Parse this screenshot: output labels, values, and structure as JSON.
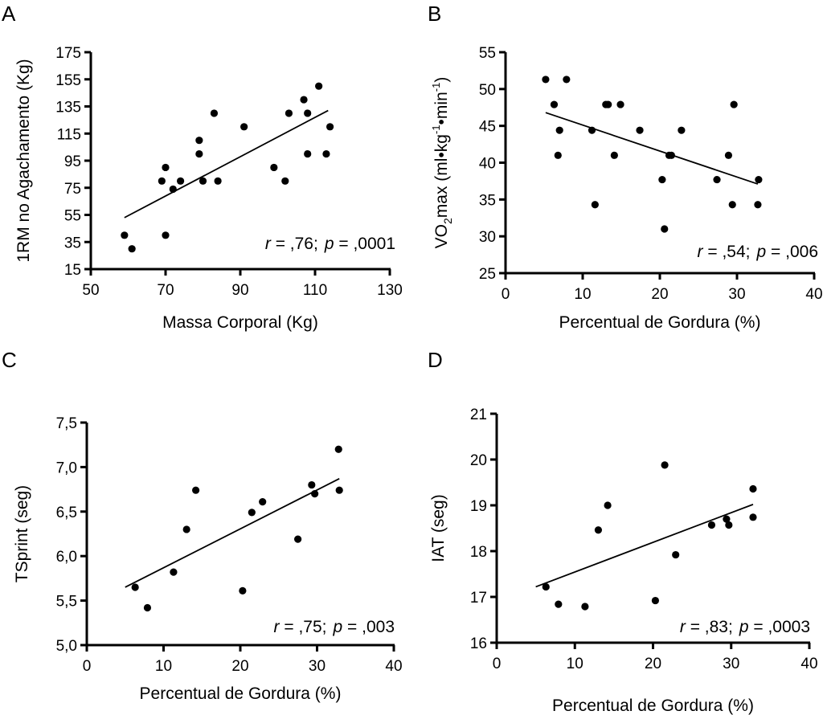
{
  "chart_data": [
    {
      "panel": "A",
      "type": "scatter",
      "title": "",
      "xlabel": "Massa Corporal (Kg)",
      "ylabel": "1RM no Agachamento (Kg)",
      "xlim": [
        50,
        130
      ],
      "ylim": [
        15,
        175
      ],
      "xticks": [
        50,
        70,
        90,
        110,
        130
      ],
      "yticks": [
        15,
        35,
        55,
        75,
        95,
        115,
        135,
        155,
        175
      ],
      "xtick_labels": [
        "50",
        "70",
        "90",
        "110",
        "130"
      ],
      "ytick_labels": [
        "15",
        "35",
        "55",
        "75",
        "95",
        "115",
        "135",
        "155",
        "175"
      ],
      "grid": false,
      "annotation": {
        "r_label": "r",
        "r_value": " = ,76;",
        "p_label": "p",
        "p_value": " = ,0001"
      },
      "points": [
        [
          59,
          40
        ],
        [
          61,
          30
        ],
        [
          69,
          80
        ],
        [
          70,
          90
        ],
        [
          70,
          40
        ],
        [
          72,
          74
        ],
        [
          74,
          80
        ],
        [
          79,
          100
        ],
        [
          79,
          110
        ],
        [
          80,
          80
        ],
        [
          83,
          130
        ],
        [
          84,
          80
        ],
        [
          91,
          120
        ],
        [
          99,
          90
        ],
        [
          102,
          80
        ],
        [
          103,
          130
        ],
        [
          107,
          140
        ],
        [
          108,
          130
        ],
        [
          108,
          100
        ],
        [
          111,
          150
        ],
        [
          113,
          100
        ],
        [
          114,
          120
        ]
      ],
      "trendline": [
        [
          59,
          53
        ],
        [
          113.5,
          132
        ]
      ]
    },
    {
      "panel": "B",
      "type": "scatter",
      "title": "",
      "xlabel": "Percentual de Gordura (%)",
      "ylabel_main": "VO",
      "ylabel_sub": "2",
      "ylabel_rest": "max (ml•kg",
      "ylabel_sup1": "-1",
      "ylabel_mid": "•min",
      "ylabel_sup2": "-1",
      "ylabel_end": ")",
      "xlim": [
        0,
        40
      ],
      "ylim": [
        25,
        55
      ],
      "xticks": [
        0,
        10,
        20,
        30,
        40
      ],
      "yticks": [
        25,
        30,
        35,
        40,
        45,
        50,
        55
      ],
      "xtick_labels": [
        "0",
        "10",
        "20",
        "30",
        "40"
      ],
      "ytick_labels": [
        "25",
        "30",
        "35",
        "40",
        "45",
        "50",
        "55"
      ],
      "grid": false,
      "annotation": {
        "r_label": "r",
        "r_value": " = ,54;",
        "p_label": "p",
        "p_value": " = ,006"
      },
      "points": [
        [
          5.2,
          51.3
        ],
        [
          6.3,
          47.9
        ],
        [
          7.9,
          51.3
        ],
        [
          7.0,
          44.4
        ],
        [
          6.8,
          41.0
        ],
        [
          11.2,
          44.4
        ],
        [
          11.6,
          34.3
        ],
        [
          13.0,
          47.9
        ],
        [
          13.3,
          47.9
        ],
        [
          14.1,
          41.0
        ],
        [
          14.9,
          47.9
        ],
        [
          17.4,
          44.4
        ],
        [
          20.3,
          37.7
        ],
        [
          20.6,
          31.0
        ],
        [
          21.2,
          41.0
        ],
        [
          21.5,
          41.0
        ],
        [
          22.8,
          44.4
        ],
        [
          27.4,
          37.7
        ],
        [
          28.9,
          41.0
        ],
        [
          29.4,
          34.3
        ],
        [
          29.6,
          47.9
        ],
        [
          32.8,
          37.7
        ],
        [
          32.7,
          34.3
        ]
      ],
      "trendline": [
        [
          5.2,
          46.8
        ],
        [
          32.7,
          37.1
        ]
      ]
    },
    {
      "panel": "C",
      "type": "scatter",
      "title": "",
      "xlabel": "Percentual de Gordura (%)",
      "ylabel": "TSprint (seg)",
      "xlim": [
        0,
        40
      ],
      "ylim": [
        5.0,
        7.5
      ],
      "xticks": [
        0,
        10,
        20,
        30,
        40
      ],
      "yticks": [
        5.0,
        5.5,
        6.0,
        6.5,
        7.0,
        7.5
      ],
      "xtick_labels": [
        "0",
        "10",
        "20",
        "30",
        "40"
      ],
      "ytick_labels": [
        "5,0",
        "5,5",
        "6,0",
        "6,5",
        "7,0",
        "7,5"
      ],
      "grid": false,
      "annotation": {
        "r_label": "r",
        "r_value": " = ,75;",
        "p_label": "p",
        "p_value": " = ,003"
      },
      "points": [
        [
          6.3,
          5.65
        ],
        [
          7.9,
          5.42
        ],
        [
          11.3,
          5.82
        ],
        [
          13.0,
          6.3
        ],
        [
          14.2,
          6.74
        ],
        [
          20.3,
          5.61
        ],
        [
          21.5,
          6.49
        ],
        [
          22.9,
          6.61
        ],
        [
          27.5,
          6.19
        ],
        [
          29.3,
          6.8
        ],
        [
          29.7,
          6.7
        ],
        [
          32.8,
          7.2
        ],
        [
          32.9,
          6.74
        ]
      ],
      "trendline": [
        [
          5.0,
          5.65
        ],
        [
          32.9,
          6.87
        ]
      ]
    },
    {
      "panel": "D",
      "type": "scatter",
      "title": "",
      "xlabel": "Percentual de Gordura (%)",
      "ylabel": "IAT (seg)",
      "xlim": [
        0,
        40
      ],
      "ylim": [
        16,
        21
      ],
      "xticks": [
        0,
        10,
        20,
        30,
        40
      ],
      "yticks": [
        16,
        17,
        18,
        19,
        20,
        21
      ],
      "xtick_labels": [
        "0",
        "10",
        "20",
        "30",
        "40"
      ],
      "ytick_labels": [
        "16",
        "17",
        "18",
        "19",
        "20",
        "21"
      ],
      "grid": false,
      "annotation": {
        "r_label": "r",
        "r_value": " = ,83;",
        "p_label": "p",
        "p_value": " = ,0003"
      },
      "points": [
        [
          6.3,
          17.22
        ],
        [
          7.9,
          16.84
        ],
        [
          11.3,
          16.79
        ],
        [
          13.0,
          18.46
        ],
        [
          14.2,
          19.0
        ],
        [
          20.3,
          16.92
        ],
        [
          21.5,
          19.88
        ],
        [
          22.9,
          17.92
        ],
        [
          27.5,
          18.57
        ],
        [
          29.4,
          18.7
        ],
        [
          29.7,
          18.57
        ],
        [
          32.8,
          19.36
        ],
        [
          32.8,
          18.74
        ]
      ],
      "trendline": [
        [
          5.0,
          17.22
        ],
        [
          32.8,
          19.02
        ]
      ]
    }
  ]
}
